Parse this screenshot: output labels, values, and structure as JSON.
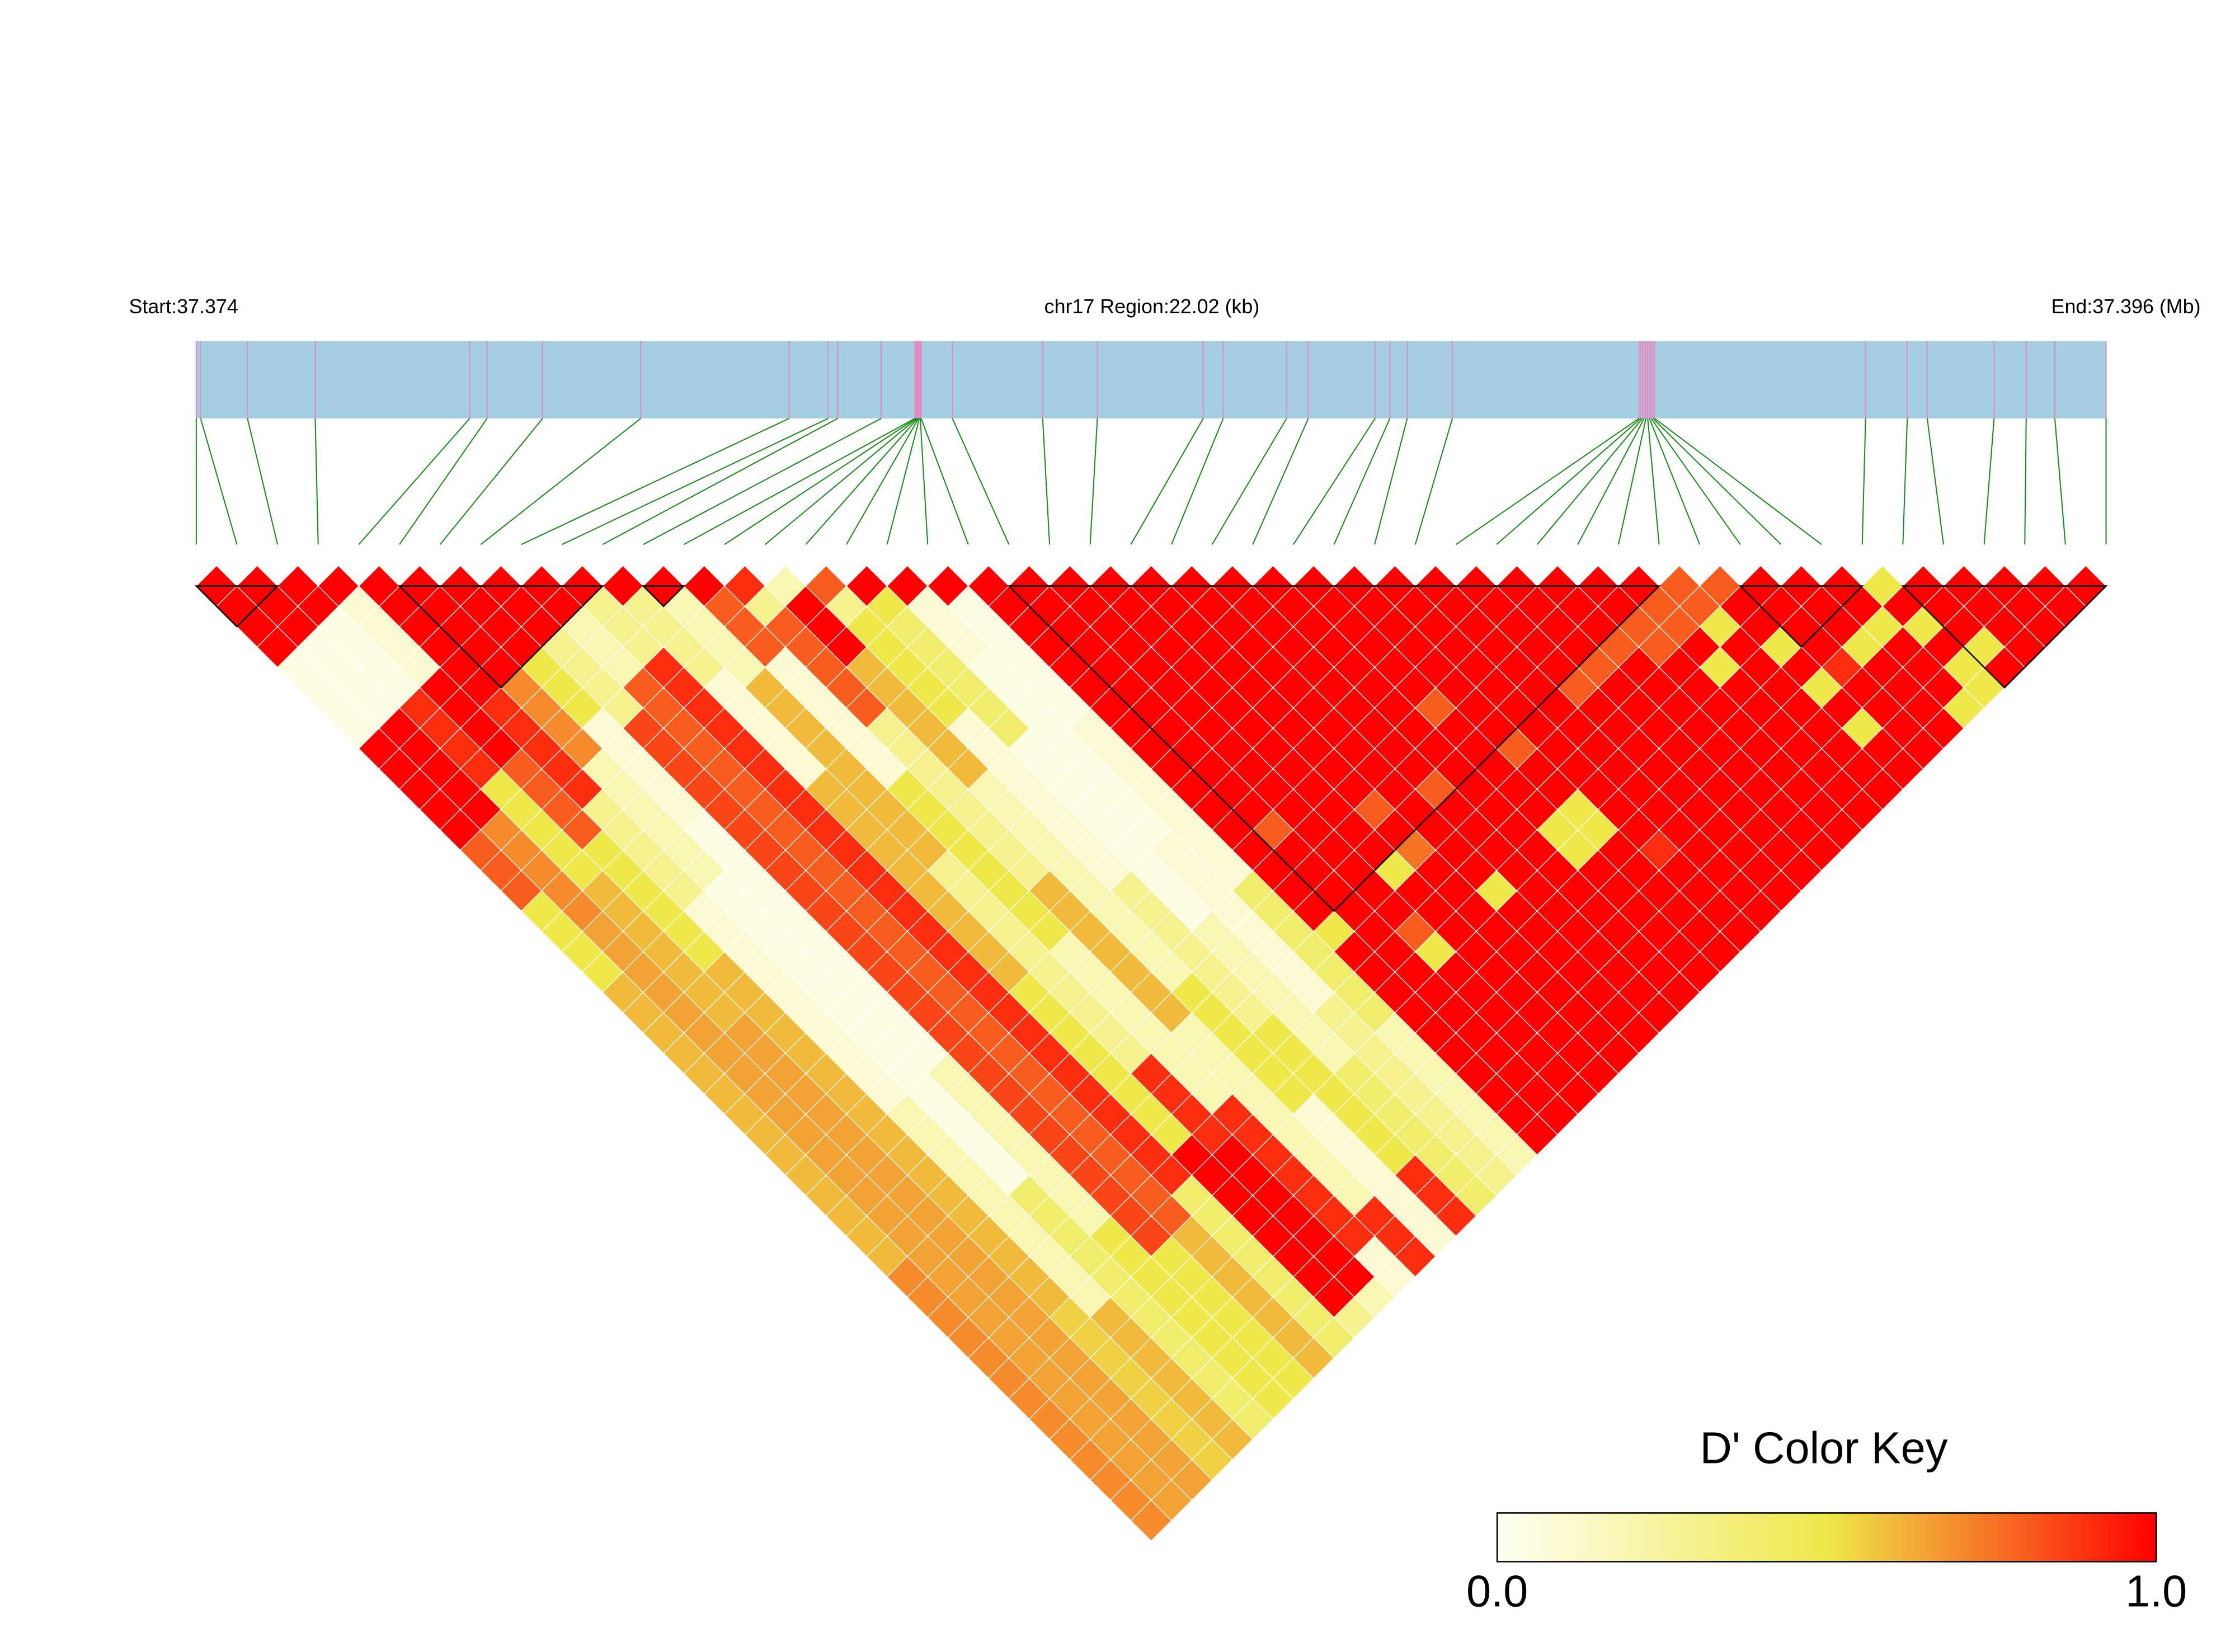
{
  "chart_data": {
    "type": "ld_heatmap",
    "start_label": "Start:37.374",
    "region_label": "chr17 Region:22.02 (kb)",
    "end_label": "End:37.396 (Mb)",
    "xlim": [
      37.374,
      37.396
    ],
    "positions": [
      37.374,
      37.37405,
      37.37459,
      37.37537,
      37.37715,
      37.37735,
      37.37799,
      37.37912,
      37.38083,
      37.38128,
      37.38139,
      37.38189,
      37.38228,
      37.38229,
      37.3823,
      37.38231,
      37.38232,
      37.38233,
      37.38234,
      37.38235,
      37.38271,
      37.38375,
      37.38438,
      37.3856,
      37.38583,
      37.38656,
      37.38681,
      37.38758,
      37.38775,
      37.38795,
      37.38847,
      37.39062,
      37.39064,
      37.39066,
      37.39068,
      37.3907,
      37.39072,
      37.39074,
      37.39076,
      37.39078,
      37.3908,
      37.39323,
      37.39371,
      37.39394,
      37.39471,
      37.39508,
      37.39541,
      37.396
    ],
    "bar_color": "#a6cee3",
    "marker_color": "#e48ac0",
    "connector_color": "#1a8a1a",
    "block_color": "#000000",
    "color_scale": [
      "#fffff4",
      "#eee84a",
      "#ff0000"
    ],
    "blocks": [
      [
        0,
        2
      ],
      [
        5,
        10
      ],
      [
        11,
        12
      ],
      [
        20,
        36
      ],
      [
        38,
        41
      ],
      [
        42,
        47
      ]
    ],
    "values": [
      [
        1,
        1,
        1,
        1,
        0.05,
        0.05,
        0.05,
        0.05,
        1,
        1,
        1,
        1,
        1,
        0.8,
        0.8,
        0.8,
        0.5,
        0.5,
        0.5,
        0.5,
        0.6,
        0.6,
        0.6,
        0.6,
        0.6,
        0.6,
        0.6,
        0.6,
        0.6,
        0.6,
        0.6,
        0.6,
        0.6,
        0.6,
        0.7,
        0.7,
        0.7,
        0.7,
        0.7,
        0.7,
        0.7,
        0.7,
        0.7,
        0.7,
        0.7,
        0.7,
        0.7
      ],
      [
        1,
        1,
        1,
        0.05,
        0.05,
        0.05,
        0.05,
        1,
        1,
        1,
        1,
        1,
        0.7,
        0.7,
        0.7,
        0.7,
        0.7,
        0.65,
        0.65,
        0.65,
        0.65,
        0.65,
        0.65,
        0.65,
        0.65,
        0.65,
        0.65,
        0.65,
        0.65,
        0.65,
        0.65,
        0.65,
        0.65,
        0.65,
        0.65,
        0.65,
        0.65,
        0.65,
        0.65,
        0.65,
        0.65,
        0.65,
        0.65,
        0.65,
        0.65,
        0.65
      ],
      [
        1,
        1,
        0.05,
        0.05,
        0.05,
        0.05,
        0.9,
        0.9,
        0.9,
        0.9,
        0.5,
        0.5,
        0.5,
        0.5,
        0.5,
        0.6,
        0.6,
        0.6,
        0.6,
        0.6,
        0.6,
        0.6,
        0.65,
        0.65,
        0.65,
        0.65,
        0.65,
        0.65,
        0.65,
        0.65,
        0.65,
        0.65,
        0.65,
        0.65,
        0.65,
        0.65,
        0.65,
        0.65,
        0.65,
        0.65,
        0.65,
        0.65,
        0.65,
        0.65,
        0.65
      ],
      [
        1,
        0.1,
        0.1,
        0.1,
        0.1,
        1,
        1,
        1,
        1,
        0.8,
        0.8,
        0.8,
        0.8,
        0.5,
        0.5,
        0.5,
        0.5,
        0.5,
        0.5,
        0.6,
        0.6,
        0.6,
        0.6,
        0.6,
        0.6,
        0.6,
        0.6,
        0.6,
        0.6,
        0.6,
        0.6,
        0.6,
        0.6,
        0.6,
        0.6,
        0.6,
        0.55,
        0.55,
        0.55,
        0.55,
        0.55,
        0.55,
        0.55,
        0.55
      ],
      [
        1,
        1,
        1,
        1,
        1,
        1,
        0.9,
        0.9,
        0.9,
        0.9,
        0.9,
        0.3,
        0.3,
        0.3,
        0.3,
        0.3,
        0.1,
        0.1,
        0.1,
        0.1,
        0.1,
        0.1,
        0.1,
        0.1,
        0.1,
        0.1,
        0.2,
        0.2,
        0.2,
        0.2,
        0.2,
        0.2,
        0.2,
        0.2,
        0.2,
        0.2,
        0.6,
        0.6,
        0.6,
        0.6,
        0.6,
        0.6,
        0.6
      ],
      [
        1,
        1,
        1,
        1,
        1,
        0.7,
        0.7,
        0.7,
        0.7,
        0.2,
        0.2,
        0.2,
        0.2,
        0.2,
        0.2,
        0.05,
        0.05,
        0.05,
        0.05,
        0.05,
        0.05,
        0.05,
        0.05,
        0.05,
        0.05,
        0.05,
        0.05,
        0.05,
        0.05,
        0.05,
        0.4,
        0.4,
        0.4,
        0.4,
        0.4,
        0.4,
        0.4,
        0.4,
        0.4,
        0.4,
        0.4,
        0.4
      ],
      [
        1,
        1,
        1,
        1,
        0.5,
        0.5,
        0.5,
        0.1,
        0.1,
        0.1,
        0.1,
        0.1,
        0.05,
        0.05,
        0.05,
        0.05,
        0.05,
        0.05,
        0.05,
        0.05,
        0.05,
        0.05,
        0.05,
        0.05,
        0.2,
        0.2,
        0.2,
        0.2,
        0.2,
        0.2,
        0.2,
        0.2,
        0.5,
        0.5,
        0.5,
        0.5,
        0.5,
        0.5,
        0.5,
        0.5,
        0.5
      ],
      [
        1,
        1,
        1,
        0.3,
        0.3,
        0.3,
        0.3,
        0.85,
        0.85,
        0.85,
        0.85,
        0.85,
        0.85,
        0.85,
        0.85,
        0.85,
        0.85,
        0.85,
        0.85,
        0.85,
        0.85,
        0.85,
        0.85,
        0.85,
        0.85,
        0.85,
        0.85,
        0.85,
        0.85,
        0.85,
        0.85,
        0.85,
        0.85,
        0.5,
        0.5,
        0.5,
        0.5,
        0.5,
        0.5,
        0.5
      ],
      [
        1,
        1,
        0.2,
        0.2,
        0.2,
        0.8,
        0.8,
        0.8,
        0.8,
        0.8,
        0.8,
        0.8,
        0.8,
        0.8,
        0.8,
        0.8,
        0.8,
        0.8,
        0.8,
        0.8,
        0.8,
        0.8,
        0.8,
        0.8,
        0.8,
        0.8,
        0.8,
        0.8,
        0.8,
        0.8,
        0.8,
        0.8,
        0.6,
        0.6,
        0.6,
        0.6,
        0.6,
        0.6,
        0.6
      ],
      [
        1,
        0.3,
        0.3,
        0.3,
        0.9,
        0.9,
        0.9,
        0.9,
        0.9,
        0.9,
        0.9,
        0.9,
        0.9,
        0.9,
        0.9,
        0.9,
        0.9,
        0.9,
        0.9,
        0.9,
        0.9,
        0.9,
        0.9,
        0.9,
        0.9,
        0.9,
        0.9,
        0.9,
        0.9,
        0.9,
        0.4,
        0.4,
        0.4,
        0.4,
        0.4,
        0.4,
        0.4,
        0.4
      ],
      [
        1,
        0.3,
        0.3,
        0.3,
        0.3,
        0.1,
        0.1,
        0.1,
        0.1,
        0.1,
        0.6,
        0.6,
        0.6,
        0.6,
        0.6,
        0.6,
        0.6,
        0.6,
        0.6,
        0.6,
        0.5,
        0.5,
        0.5,
        0.5,
        0.5,
        0.5,
        0.5,
        0.5,
        1,
        1,
        1,
        1,
        1,
        1,
        1,
        1,
        0.3
      ],
      [
        1,
        0.2,
        0.2,
        0.2,
        0.2,
        0.6,
        0.6,
        0.6,
        0.6,
        0.6,
        0.6,
        0.6,
        0.6,
        0.6,
        0.3,
        0.3,
        0.3,
        0.3,
        0.3,
        0.3,
        0.3,
        0.3,
        0.3,
        0.3,
        0.9,
        0.9,
        0.9,
        0.9,
        1,
        1,
        1,
        1,
        1,
        1,
        1,
        0.2
      ],
      [
        1,
        0.8,
        0.8,
        0.8,
        0.1,
        0.1,
        0.1,
        0.1,
        0.1,
        0.1,
        0.5,
        0.5,
        0.5,
        0.5,
        0.5,
        0.5,
        0.5,
        0.5,
        0.2,
        0.2,
        0.2,
        0.2,
        0.2,
        0.2,
        0.2,
        0.2,
        0.9,
        0.9,
        0.9,
        0.9,
        0.9,
        0.9,
        0.9,
        0.1,
        0.1
      ],
      [
        0.9,
        0.3,
        0.8,
        0.8,
        0.8,
        0.8,
        0.8,
        0.3,
        0.3,
        0.3,
        0.3,
        0.3,
        0.3,
        0.3,
        0.3,
        0.6,
        0.6,
        0.6,
        0.6,
        0.6,
        0.6,
        0.6,
        0.2,
        0.2,
        0.2,
        0.2,
        0.2,
        0.2,
        0.2,
        0.2,
        0.2,
        0.9,
        0.9,
        0.9
      ],
      [
        0.2,
        1,
        1,
        1,
        0.6,
        0.6,
        0.6,
        0.6,
        0.6,
        0.6,
        0.2,
        0.2,
        0.2,
        0.2,
        0.2,
        0.2,
        0.2,
        0.2,
        0.2,
        0.2,
        0.5,
        0.5,
        0.5,
        0.5,
        0.5,
        0.5,
        0.1,
        0.1,
        0.1,
        0.1,
        0.1,
        0.1,
        0.1
      ],
      [
        0.8,
        0.3,
        0.5,
        0.5,
        0.5,
        0.5,
        0.5,
        0.1,
        0.1,
        0.1,
        0.1,
        0.1,
        0.1,
        0.1,
        0.1,
        0.3,
        0.3,
        0.3,
        0.3,
        0.3,
        0.3,
        0.3,
        0.5,
        0.5,
        0.5,
        0.5,
        0.5,
        0.5,
        0.5,
        0.9,
        0.9,
        0.9
      ],
      [
        1,
        0.5,
        0.4,
        0.4,
        0.4,
        0.4,
        0.4,
        0.4,
        0.05,
        0.05,
        0.05,
        0.05,
        0.05,
        0.05,
        0.05,
        0.05,
        0.05,
        0.2,
        0.2,
        0.2,
        0.2,
        0.2,
        0.2,
        0.2,
        0.4,
        0.4,
        0.4,
        0.4,
        0.4,
        0.4,
        0.4
      ],
      [
        1,
        0.1,
        0.1,
        0.1,
        0.05,
        0.05,
        0.05,
        0.05,
        0.05,
        0.05,
        0.05,
        0.05,
        0.05,
        0.1,
        0.1,
        0.1,
        0.1,
        0.1,
        0.1,
        0.1,
        0.1,
        0.3,
        0.3,
        0.3,
        0.3,
        0.3,
        0.3,
        0.3,
        0.3,
        0.3
      ],
      [
        1,
        0.05,
        0.05,
        0.05,
        0.05,
        0.05,
        0.05,
        0.1,
        0.1,
        0.1,
        0.1,
        0.1,
        0.1,
        0.1,
        0.1,
        0.4,
        0.4,
        0.4,
        0.4,
        0.4,
        0.4,
        0.4,
        0.2,
        0.2,
        0.2,
        0.2,
        0.2,
        0.2,
        0.2
      ],
      [
        1,
        1,
        1,
        1,
        1,
        1,
        1,
        1,
        1,
        1,
        1,
        1,
        1,
        1,
        1,
        1,
        1,
        0.5,
        1,
        1,
        1,
        1,
        1,
        1,
        1,
        1,
        1,
        1
      ],
      [
        1,
        1,
        1,
        1,
        1,
        1,
        1,
        1,
        1,
        1,
        1,
        1,
        0.8,
        1,
        1,
        1,
        1,
        1,
        1,
        1,
        1,
        1,
        1,
        1,
        1,
        1,
        1
      ],
      [
        1,
        1,
        1,
        1,
        1,
        1,
        1,
        1,
        1,
        1,
        1,
        1,
        1,
        1,
        1,
        1,
        1,
        0.8,
        0.5,
        1,
        1,
        1,
        1,
        1,
        1,
        1
      ],
      [
        1,
        1,
        1,
        1,
        1,
        1,
        1,
        1,
        1,
        1,
        1,
        1,
        1,
        1,
        0.5,
        1,
        1,
        1,
        1,
        1,
        1,
        1,
        1,
        1,
        1
      ],
      [
        1,
        1,
        1,
        1,
        1,
        1,
        1,
        1,
        1,
        1,
        1,
        0.8,
        1,
        0.75,
        1,
        1,
        1,
        1,
        1,
        1,
        1,
        1,
        1,
        1
      ],
      [
        1,
        1,
        1,
        1,
        1,
        1,
        1,
        1,
        1,
        1,
        1,
        1,
        1,
        1,
        1,
        0.5,
        1,
        1,
        1,
        1,
        1,
        1,
        1
      ],
      [
        1,
        1,
        1,
        1,
        1,
        1,
        1,
        1,
        1,
        1,
        0.8,
        1,
        1,
        1,
        1,
        1,
        1,
        1,
        1,
        1,
        1,
        1
      ],
      [
        1,
        1,
        1,
        1,
        1,
        1,
        1,
        1,
        1,
        1,
        1,
        1,
        1,
        1,
        1,
        1,
        1,
        1,
        1,
        1,
        1
      ],
      [
        1,
        1,
        1,
        1,
        1,
        1,
        0.8,
        1,
        1,
        1,
        1,
        1,
        0.5,
        0.5,
        1,
        1,
        1,
        1,
        1,
        1
      ],
      [
        1,
        1,
        1,
        1,
        1,
        1,
        1,
        1,
        0.8,
        1,
        1,
        0.5,
        0.5,
        1,
        1,
        1,
        1,
        1,
        1
      ],
      [
        1,
        1,
        1,
        1,
        1,
        1,
        1,
        1,
        1,
        1,
        1,
        1,
        1,
        0.9,
        1,
        1,
        1,
        1
      ],
      [
        1,
        1,
        1,
        1,
        1,
        1,
        1,
        1,
        1,
        1,
        1,
        1,
        1,
        1,
        1,
        1,
        1
      ],
      [
        1,
        1,
        1,
        1,
        1,
        0.8,
        1,
        1,
        1,
        1,
        1,
        1,
        1,
        1,
        1,
        1
      ],
      [
        1,
        1,
        1,
        1,
        0.8,
        1,
        1,
        1,
        1,
        1,
        1,
        1,
        1,
        1,
        1
      ],
      [
        1,
        1,
        1,
        0.8,
        1,
        1,
        1,
        1,
        1,
        1,
        1,
        1,
        1,
        1
      ],
      [
        1,
        1,
        0.8,
        0.8,
        1,
        1,
        1,
        1,
        1,
        1,
        1,
        1,
        1
      ],
      [
        1,
        0.8,
        0.8,
        1,
        0.5,
        1,
        1,
        1,
        1,
        1,
        1,
        1
      ],
      [
        0.8,
        0.8,
        0.5,
        1,
        1,
        1,
        1,
        1,
        1,
        1,
        1
      ],
      [
        0.8,
        1,
        1,
        0.5,
        1,
        0.5,
        1,
        0.5,
        1,
        1
      ],
      [
        1,
        1,
        1,
        1,
        0.9,
        1,
        1,
        1,
        1
      ],
      [
        1,
        1,
        1,
        0.5,
        1,
        1,
        1,
        1
      ],
      [
        1,
        1,
        0.5,
        1,
        1,
        1,
        0.5
      ],
      [
        0.5,
        1,
        0.5,
        1,
        0.5,
        0.5
      ],
      [
        1,
        1,
        1,
        0.5,
        1
      ],
      [
        1,
        1,
        1,
        1
      ],
      [
        1,
        1,
        1
      ],
      [
        1,
        1
      ],
      [
        1
      ]
    ],
    "color_key": {
      "title": "D' Color Key",
      "ticks": [
        {
          "value": 0,
          "label": "0.0"
        },
        {
          "value": 1,
          "label": "1.0"
        }
      ]
    }
  }
}
